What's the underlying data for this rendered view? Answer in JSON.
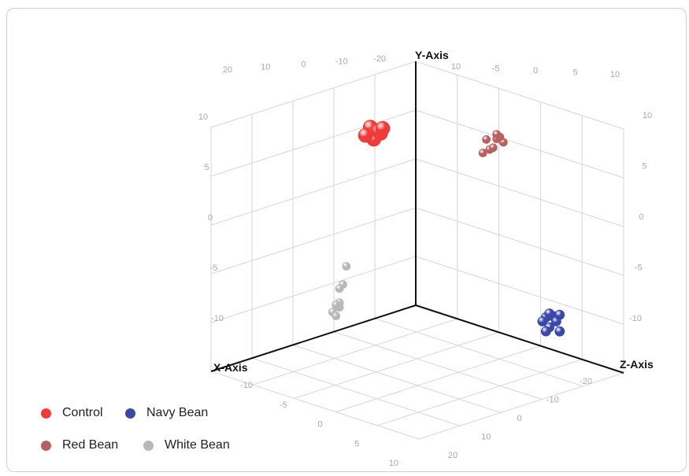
{
  "chart_data": {
    "type": "scatter",
    "dimensions": 3,
    "axis_titles": {
      "x": "X-Axis",
      "y": "Y-Axis",
      "z": "Z-Axis"
    },
    "tick_labels": {
      "y_left": [
        "10",
        "5",
        "0",
        "-5",
        "-10"
      ],
      "y_right": [
        "10",
        "5",
        "0",
        "-5",
        "-10"
      ],
      "top_left": [
        "20",
        "10",
        "0",
        "-10",
        "-20"
      ],
      "top_right": [
        "10",
        "-5",
        "0",
        "5",
        "10"
      ],
      "x_floor": [
        "-10",
        "-5",
        "0",
        "5",
        "10"
      ],
      "z_floor": [
        "-20",
        "-10",
        "0",
        "10",
        "20"
      ]
    },
    "series": [
      {
        "name": "Control",
        "color": "#f03b3b",
        "points": [
          [
            4,
            10,
            -9
          ],
          [
            5,
            10.5,
            -9
          ],
          [
            4.5,
            9.5,
            -9
          ],
          [
            5.5,
            9.8,
            -8
          ],
          [
            4,
            9.8,
            -8
          ],
          [
            5,
            9.3,
            -8
          ],
          [
            4.8,
            10.2,
            -7
          ],
          [
            5.2,
            9.6,
            -10
          ],
          [
            4.2,
            10.4,
            -7
          ]
        ]
      },
      {
        "name": "Navy Bean",
        "color": "#3b48a8",
        "points": [
          [
            -6,
            -9,
            22
          ],
          [
            -5,
            -9,
            22
          ],
          [
            -6,
            -9.5,
            23
          ],
          [
            -5,
            -10,
            23
          ],
          [
            -6,
            -10.5,
            24
          ],
          [
            -5,
            -9.5,
            21
          ],
          [
            -7,
            -9,
            22
          ],
          [
            -6,
            -8.8,
            21
          ],
          [
            -5,
            -10.5,
            22
          ]
        ]
      },
      {
        "name": "Red Bean",
        "color": "#b86060",
        "points": [
          [
            -13,
            7,
            -8
          ],
          [
            -12,
            7,
            -9
          ],
          [
            -14,
            6.5,
            -8
          ],
          [
            -12,
            6,
            -8
          ],
          [
            -13,
            6,
            -9
          ],
          [
            -14,
            7,
            -9
          ],
          [
            -12,
            5.5,
            -10
          ],
          [
            -13,
            7.5,
            -8
          ]
        ]
      },
      {
        "name": "White Bean",
        "color": "#b8b8b8",
        "points": [
          [
            8,
            -4,
            -10
          ],
          [
            8,
            -6,
            -11
          ],
          [
            8,
            -8,
            -12
          ],
          [
            8,
            -8.5,
            -12
          ],
          [
            8.5,
            -9,
            -13
          ],
          [
            8,
            -9.5,
            -13
          ],
          [
            8,
            -6.5,
            -12
          ],
          [
            8,
            -8.3,
            -13
          ]
        ]
      }
    ],
    "legend": {
      "position": "bottom-left",
      "items": [
        {
          "label": "Control",
          "color": "#f03b3b"
        },
        {
          "label": "Navy Bean",
          "color": "#3b48a8"
        },
        {
          "label": "Red Bean",
          "color": "#b86060"
        },
        {
          "label": "White Bean",
          "color": "#b8b8b8"
        }
      ]
    }
  }
}
